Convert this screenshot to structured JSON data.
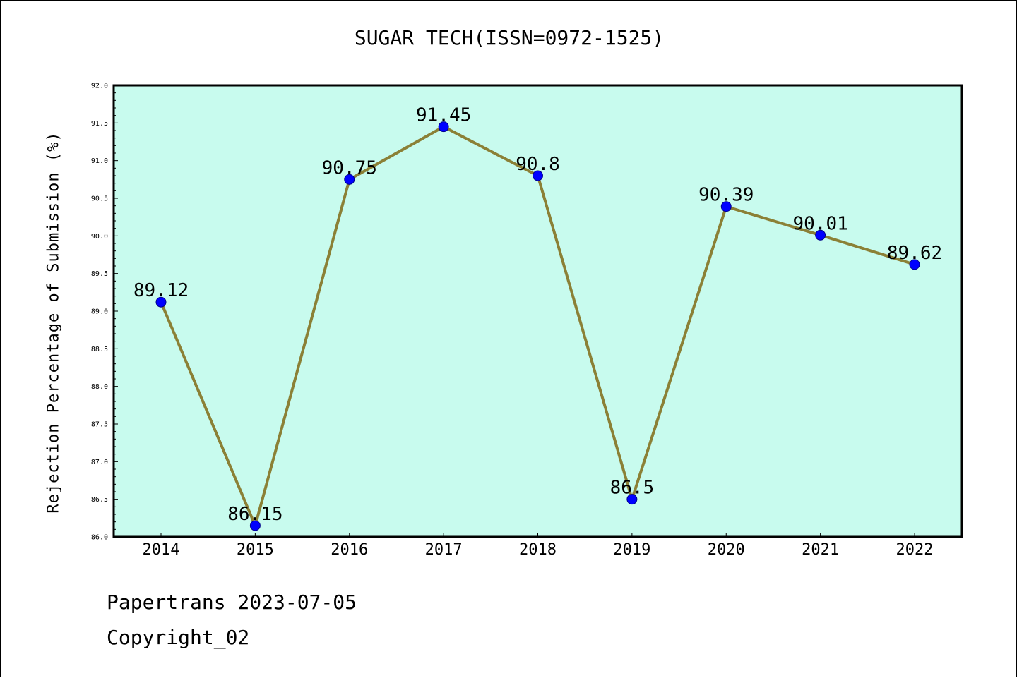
{
  "chart_data": {
    "type": "line",
    "title": "SUGAR TECH(ISSN=0972-1525)",
    "xlabel": "",
    "ylabel": "Rejection Percentage of Submission (%)",
    "categories": [
      "2014",
      "2015",
      "2016",
      "2017",
      "2018",
      "2019",
      "2020",
      "2021",
      "2022"
    ],
    "values": [
      89.12,
      86.15,
      90.75,
      91.45,
      90.8,
      86.5,
      90.39,
      90.01,
      89.62
    ],
    "data_labels": [
      "89.12",
      "86.15",
      "90.75",
      "91.45",
      "90.8",
      "86.5",
      "90.39",
      "90.01",
      "89.62"
    ],
    "ylim": [
      86.0,
      92.0
    ],
    "yticks": [
      "86.0",
      "86.5",
      "87.0",
      "87.5",
      "88.0",
      "88.5",
      "89.0",
      "89.5",
      "90.0",
      "90.5",
      "91.0",
      "91.5",
      "92.0"
    ],
    "grid": false,
    "colors": {
      "plot_background": "#c8fbee",
      "line": "#8b8036",
      "marker": "#0000ff",
      "axis": "#000000"
    }
  },
  "footer": {
    "source": "Papertrans 2023-07-05",
    "copyright": "Copyright_02"
  }
}
